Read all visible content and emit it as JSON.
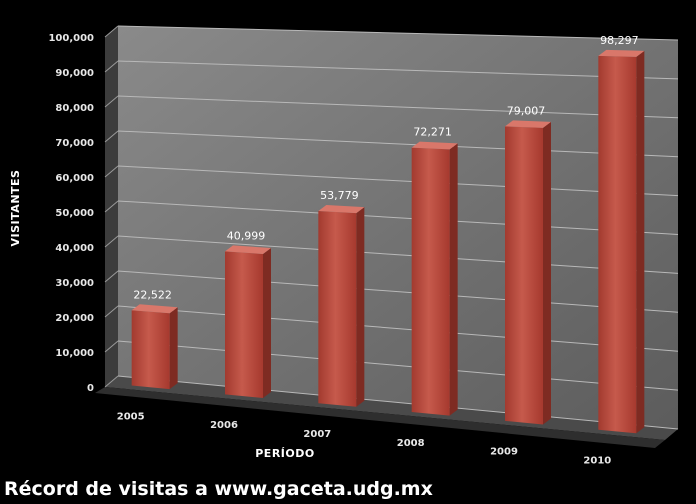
{
  "chart_data": {
    "type": "bar",
    "title": "",
    "xlabel": "PERÍODO",
    "ylabel": "VISITANTES",
    "categories": [
      "2005",
      "2006",
      "2007",
      "2008",
      "2009",
      "2010"
    ],
    "values": [
      22522,
      40999,
      53779,
      72271,
      79007,
      98297
    ],
    "data_labels": [
      "22,522",
      "40,999",
      "53,779",
      "72,271",
      "79,007",
      "98,297"
    ],
    "y_ticks": [
      "0",
      "10,000",
      "20,000",
      "30,000",
      "40,000",
      "50,000",
      "60,000",
      "70,000",
      "80,000",
      "90,000",
      "100,000"
    ],
    "ylim": [
      0,
      100000
    ],
    "grid": true,
    "legend": "none",
    "colors": {
      "bar": "#b5473a",
      "bar_side": "#7e2b22",
      "bar_top": "#d9776a",
      "wall": "#7b7b7b",
      "floor": "#4a4a4a",
      "background": "#000000"
    }
  },
  "footer": {
    "caption": "Récord de visitas a www.gaceta.udg.mx"
  }
}
